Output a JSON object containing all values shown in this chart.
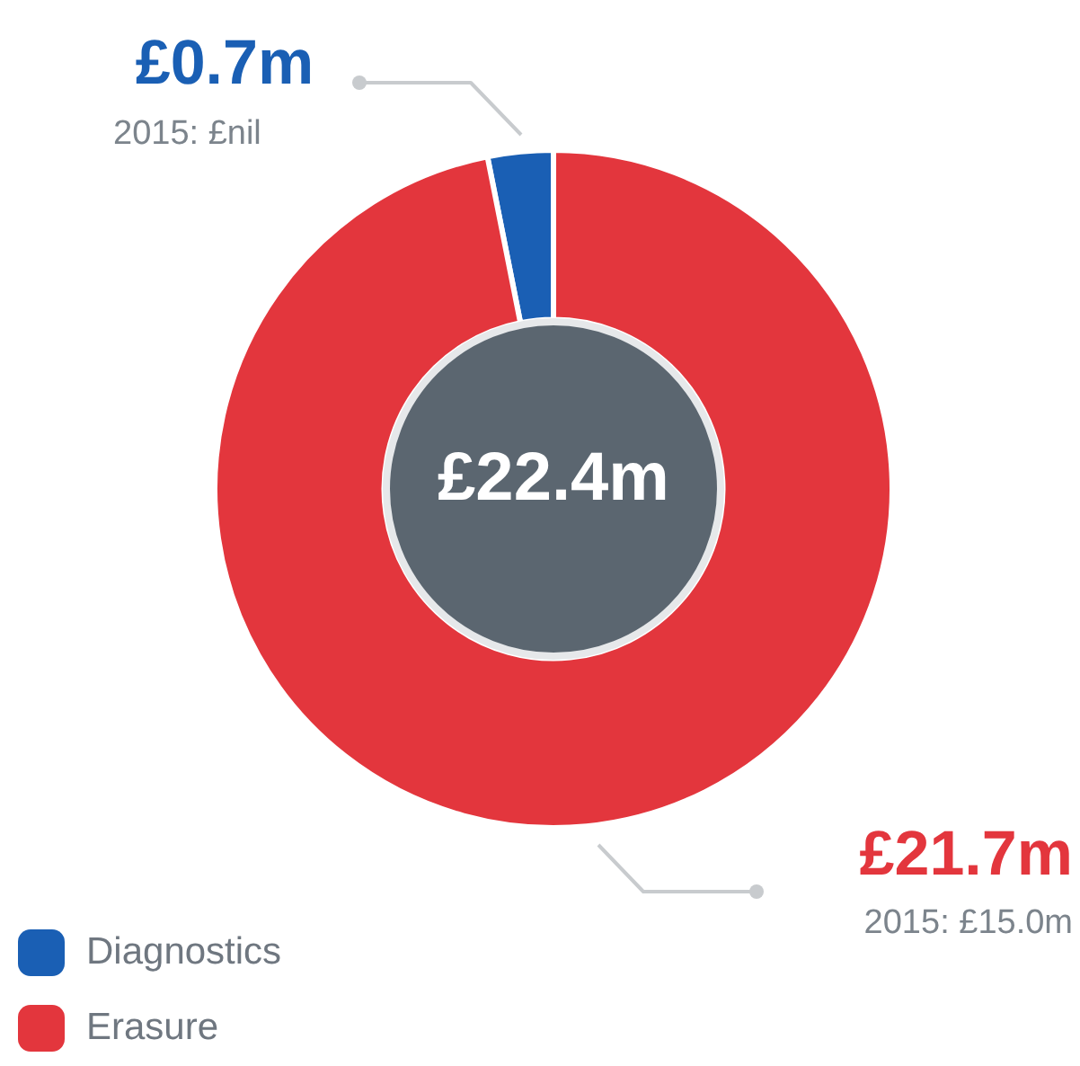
{
  "chart_data": {
    "type": "donut",
    "categories": [
      "Diagnostics",
      "Erasure"
    ],
    "values": [
      0.7,
      21.7
    ],
    "colors": [
      "#1a5fb4",
      "#e3363d"
    ],
    "value_labels": [
      "£0.7m",
      "£21.7m"
    ],
    "annotations": [
      "2015: £nil",
      "2015: £15.0m",
      "£22.4m"
    ],
    "legend": "bottom left"
  }
}
